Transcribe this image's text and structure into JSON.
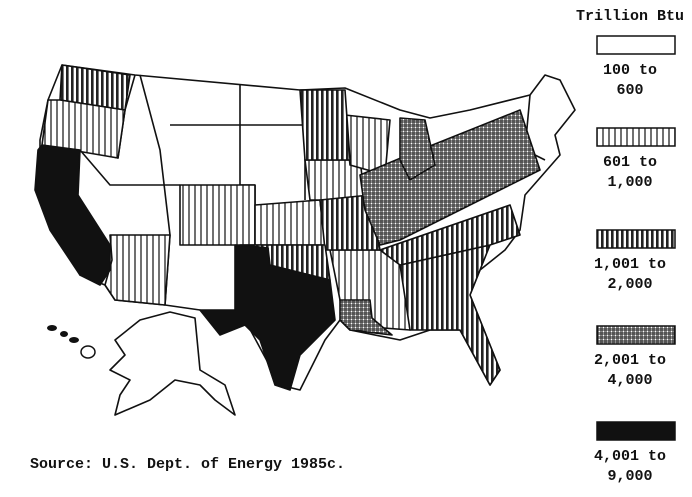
{
  "legend": {
    "title": "Trillion Btu",
    "entries": [
      {
        "lines": [
          "100 to",
          "600"
        ]
      },
      {
        "lines": [
          "601 to",
          "1,000"
        ]
      },
      {
        "lines": [
          "1,001 to",
          "2,000"
        ]
      },
      {
        "lines": [
          "2,001 to",
          "4,000"
        ]
      },
      {
        "lines": [
          "4,001 to",
          "9,000"
        ]
      }
    ]
  },
  "source": "Source:  U.S. Dept. of Energy 1985c."
}
